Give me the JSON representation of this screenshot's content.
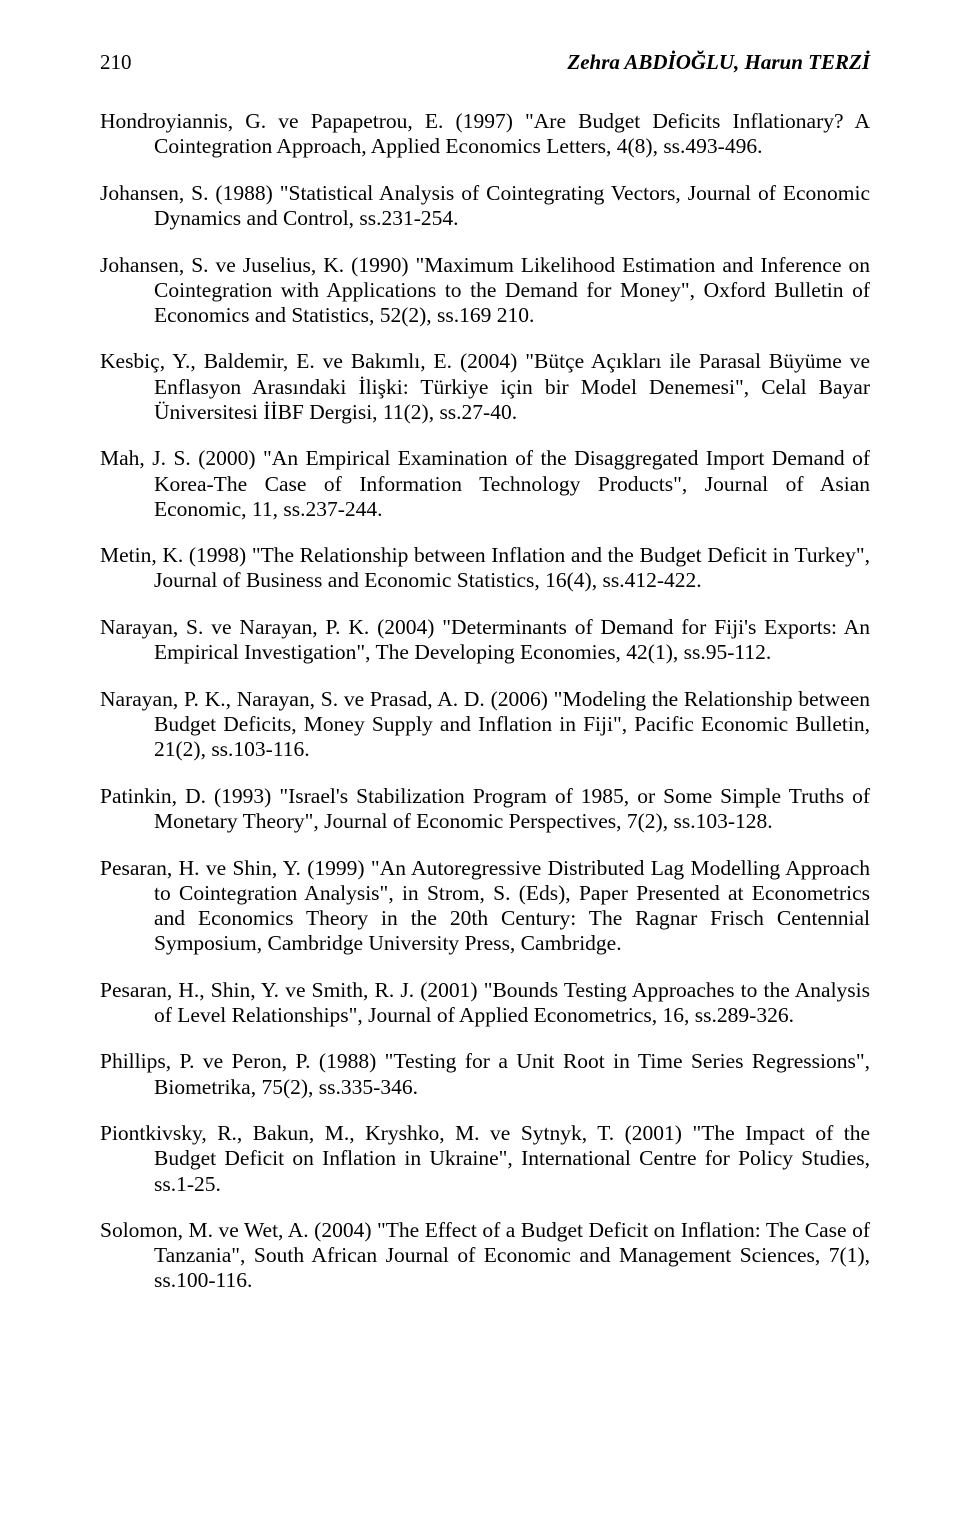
{
  "header": {
    "page_number": "210",
    "authors": "Zehra ABDİOĞLU, Harun TERZİ"
  },
  "references": [
    "Hondroyiannis, G. ve Papapetrou, E. (1997) \"Are Budget Deficits Inflationary? A Cointegration Approach, Applied Economics Letters, 4(8), ss.493-496.",
    "Johansen, S. (1988) \"Statistical Analysis of Cointegrating Vectors, Journal of Economic Dynamics and Control, ss.231-254.",
    "Johansen, S. ve Juselius, K. (1990) \"Maximum Likelihood Estimation and Inference on Cointegration with Applications to the Demand for Money\", Oxford Bulletin of Economics and Statistics, 52(2), ss.169 210.",
    "Kesbiç, Y., Baldemir, E. ve Bakımlı, E. (2004) \"Bütçe Açıkları ile Parasal Büyüme ve Enflasyon Arasındaki İlişki: Türkiye için bir Model Denemesi\", Celal Bayar Üniversitesi İİBF Dergisi, 11(2), ss.27-40.",
    "Mah, J. S. (2000) \"An Empirical Examination of the Disaggregated Import Demand of Korea-The Case of Information Technology Products\", Journal of Asian Economic, 11, ss.237-244.",
    "Metin, K. (1998) \"The Relationship between Inflation and the Budget Deficit in Turkey\", Journal of Business and Economic Statistics, 16(4), ss.412-422.",
    "Narayan, S. ve Narayan, P. K. (2004) \"Determinants of Demand for Fiji's Exports: An Empirical Investigation\", The Developing Economies, 42(1), ss.95-112.",
    "Narayan, P. K., Narayan, S. ve Prasad, A. D. (2006) \"Modeling the Relationship between Budget Deficits, Money Supply and Inflation in Fiji\", Pacific Economic Bulletin, 21(2), ss.103-116.",
    "Patinkin, D. (1993) \"Israel's Stabilization Program of 1985, or Some Simple Truths of Monetary Theory\", Journal of Economic Perspectives, 7(2), ss.103-128.",
    "Pesaran, H. ve Shin, Y. (1999) \"An Autoregressive Distributed Lag Modelling Approach to Cointegration Analysis\", in Strom, S. (Eds), Paper Presented at Econometrics and Economics Theory in the 20th Century: The Ragnar Frisch Centennial Symposium, Cambridge University Press, Cambridge.",
    "Pesaran, H., Shin, Y. ve Smith, R. J. (2001) \"Bounds Testing Approaches to the Analysis of Level Relationships\", Journal of Applied Econometrics, 16, ss.289-326.",
    "Phillips, P. ve Peron, P. (1988) \"Testing for a Unit Root in Time Series Regressions\", Biometrika, 75(2), ss.335-346.",
    "Piontkivsky, R., Bakun, M., Kryshko, M. ve Sytnyk, T. (2001) \"The Impact of the Budget Deficit on Inflation in Ukraine\", International Centre for Policy Studies, ss.1-25.",
    "Solomon, M. ve Wet, A. (2004) \"The Effect of a Budget Deficit on Inflation: The Case of Tanzania\", South African Journal of Economic and Management Sciences, 7(1), ss.100-116."
  ]
}
